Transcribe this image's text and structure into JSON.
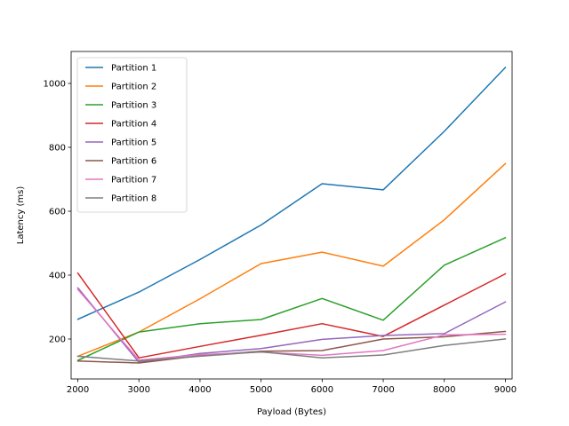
{
  "chart_data": {
    "type": "line",
    "title": "",
    "xlabel": "Payload (Bytes)",
    "ylabel": "Latency (ms)",
    "x": [
      2000,
      3000,
      4000,
      5000,
      6000,
      7000,
      8000,
      9000
    ],
    "xlim": [
      1890,
      9110
    ],
    "ylim": [
      75,
      1100
    ],
    "xticks": [
      2000,
      3000,
      4000,
      5000,
      6000,
      7000,
      8000,
      9000
    ],
    "yticks": [
      200,
      400,
      600,
      800,
      1000
    ],
    "grid": false,
    "legend_position": "top-left",
    "series": [
      {
        "name": "Partition 1",
        "color": "#1f77b4",
        "values": [
          262,
          347,
          449,
          557,
          686,
          667,
          850,
          1050
        ]
      },
      {
        "name": "Partition 2",
        "color": "#ff7f0e",
        "values": [
          146,
          222,
          326,
          436,
          472,
          428,
          573,
          749
        ]
      },
      {
        "name": "Partition 3",
        "color": "#2ca02c",
        "values": [
          133,
          222,
          248,
          261,
          327,
          259,
          431,
          517
        ]
      },
      {
        "name": "Partition 4",
        "color": "#d62728",
        "values": [
          406,
          141,
          177,
          212,
          248,
          208,
          306,
          404
        ]
      },
      {
        "name": "Partition 5",
        "color": "#9467bd",
        "values": [
          360,
          127,
          155,
          170,
          199,
          211,
          217,
          316
        ]
      },
      {
        "name": "Partition 6",
        "color": "#8c564b",
        "values": [
          131,
          125,
          148,
          162,
          164,
          200,
          207,
          224
        ]
      },
      {
        "name": "Partition 7",
        "color": "#e377c2",
        "values": [
          355,
          134,
          151,
          159,
          149,
          164,
          213,
          215
        ]
      },
      {
        "name": "Partition 8",
        "color": "#7f7f7f",
        "values": [
          146,
          131,
          146,
          160,
          141,
          150,
          180,
          200
        ]
      }
    ]
  }
}
